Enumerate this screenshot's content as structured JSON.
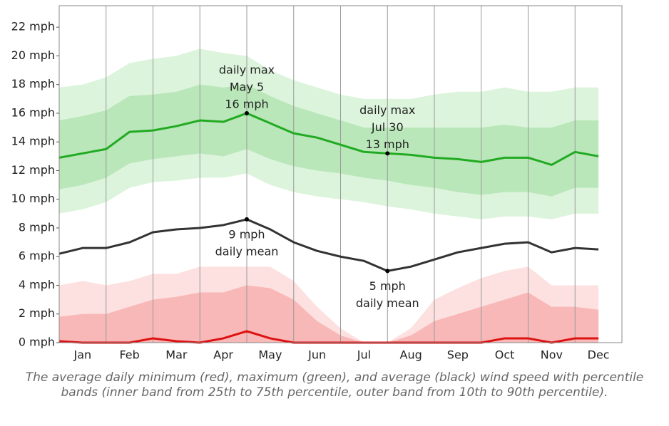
{
  "chart_data": {
    "type": "band-line",
    "categories": [
      null,
      "Jan",
      null,
      "Feb",
      null,
      "Mar",
      null,
      "Apr",
      null,
      "May",
      null,
      "Jun",
      null,
      "Jul",
      null,
      "Aug",
      null,
      "Sep",
      null,
      "Oct",
      null,
      "Nov",
      null,
      "Dec"
    ],
    "ylim": [
      0,
      23.5
    ],
    "yticks": [
      {
        "value": 0,
        "label": "0 mph"
      },
      {
        "value": 2,
        "label": "2 mph"
      },
      {
        "value": 4,
        "label": "4 mph"
      },
      {
        "value": 6,
        "label": "6 mph"
      },
      {
        "value": 8,
        "label": "8 mph"
      },
      {
        "value": 10,
        "label": "10 mph"
      },
      {
        "value": 12,
        "label": "12 mph"
      },
      {
        "value": 14,
        "label": "14 mph"
      },
      {
        "value": 16,
        "label": "16 mph"
      },
      {
        "value": 18,
        "label": "18 mph"
      },
      {
        "value": 20,
        "label": "20 mph"
      },
      {
        "value": 22,
        "label": "22 mph"
      }
    ],
    "series": [
      {
        "color": "#22aa22",
        "band_colors": [
          "#dcf4dc",
          "#b9e7b9"
        ],
        "values": [
          12.9,
          13.2,
          13.5,
          14.7,
          14.8,
          15.1,
          15.5,
          15.4,
          16.0,
          15.3,
          14.6,
          14.3,
          13.8,
          13.3,
          13.2,
          13.1,
          12.9,
          12.8,
          12.6,
          12.9,
          12.9,
          12.4,
          13.3,
          13.0
        ],
        "p90": [
          17.8,
          18,
          18.5,
          19.5,
          19.8,
          20,
          20.5,
          20.2,
          20,
          19,
          18.3,
          17.8,
          17.3,
          17,
          17,
          17,
          17.3,
          17.5,
          17.5,
          17.8,
          17.5,
          17.5,
          17.8,
          17.8
        ],
        "p75": [
          15.5,
          15.8,
          16.2,
          17.2,
          17.3,
          17.5,
          18,
          17.8,
          18,
          17.2,
          16.5,
          16,
          15.5,
          15,
          15,
          15,
          15,
          15,
          15,
          15.2,
          15,
          15,
          15.5,
          15.5
        ],
        "p25": [
          10.7,
          11,
          11.5,
          12.5,
          12.8,
          13,
          13.2,
          13,
          13.5,
          12.8,
          12.3,
          12,
          11.8,
          11.5,
          11.3,
          11,
          10.8,
          10.5,
          10.3,
          10.5,
          10.5,
          10.2,
          10.8,
          10.8
        ],
        "p10": [
          9,
          9.3,
          9.8,
          10.8,
          11.2,
          11.3,
          11.5,
          11.5,
          11.8,
          11,
          10.5,
          10.2,
          10,
          9.8,
          9.5,
          9.3,
          9,
          8.8,
          8.6,
          8.8,
          8.8,
          8.6,
          9,
          9
        ],
        "point_labels": [
          null,
          null,
          null,
          null,
          null,
          null,
          null,
          null,
          {
            "text": [
              "daily max",
              "May 5",
              "16 mph"
            ],
            "side": "above"
          },
          null,
          null,
          null,
          null,
          null,
          {
            "text": [
              "daily max",
              "Jul 30",
              "13 mph"
            ],
            "side": "above"
          },
          null,
          null,
          null,
          null,
          null,
          null,
          null,
          null,
          null
        ]
      },
      {
        "color": "#dd1111",
        "band_colors": [
          "#fde0e0",
          "#f8b8b8"
        ],
        "values": [
          0.1,
          0,
          0,
          0,
          0.3,
          0.1,
          0,
          0.3,
          0.8,
          0.3,
          0,
          0,
          0,
          0,
          0,
          0,
          0,
          0,
          0,
          0.3,
          0.3,
          0,
          0.3,
          0.3
        ],
        "p90": [
          4,
          4.3,
          4,
          4.3,
          4.8,
          4.8,
          5.3,
          5.3,
          5.3,
          5.3,
          4.3,
          2.5,
          1,
          0,
          0,
          1,
          3,
          3.8,
          4.5,
          5,
          5.3,
          4,
          4,
          4
        ],
        "p75": [
          1.8,
          2,
          2,
          2.5,
          3,
          3.2,
          3.5,
          3.5,
          4,
          3.8,
          3,
          1.5,
          0.5,
          0,
          0,
          0.5,
          1.5,
          2,
          2.5,
          3,
          3.5,
          2.5,
          2.5,
          2.3
        ],
        "p25": [
          0,
          0,
          0,
          0,
          0,
          0,
          0,
          0,
          0,
          0,
          0,
          0,
          0,
          0,
          0,
          0,
          0,
          0,
          0,
          0,
          0,
          0,
          0,
          0
        ],
        "p10": [
          0,
          0,
          0,
          0,
          0,
          0,
          0,
          0,
          0,
          0,
          0,
          0,
          0,
          0,
          0,
          0,
          0,
          0,
          0,
          0,
          0,
          0,
          0,
          0
        ]
      },
      {
        "color": "#333333",
        "values": [
          6.2,
          6.6,
          6.6,
          7.0,
          7.7,
          7.9,
          8.0,
          8.2,
          8.6,
          7.9,
          7.0,
          6.4,
          6.0,
          5.7,
          5.0,
          5.3,
          5.8,
          6.3,
          6.6,
          6.9,
          7.0,
          6.3,
          6.6,
          6.5
        ],
        "point_labels": [
          null,
          null,
          null,
          null,
          null,
          null,
          null,
          null,
          {
            "text": [
              "9 mph",
              "daily mean"
            ],
            "side": "below"
          },
          null,
          null,
          null,
          null,
          null,
          {
            "text": [
              "5 mph",
              "daily mean"
            ],
            "side": "below"
          },
          null,
          null,
          null,
          null,
          null,
          null,
          null,
          null,
          null
        ]
      }
    ],
    "caption": "The average daily minimum (red), maximum (green), and average (black) wind speed with percentile bands (inner band from 25th to 75th percentile, outer band from 10th to 90th percentile)."
  }
}
